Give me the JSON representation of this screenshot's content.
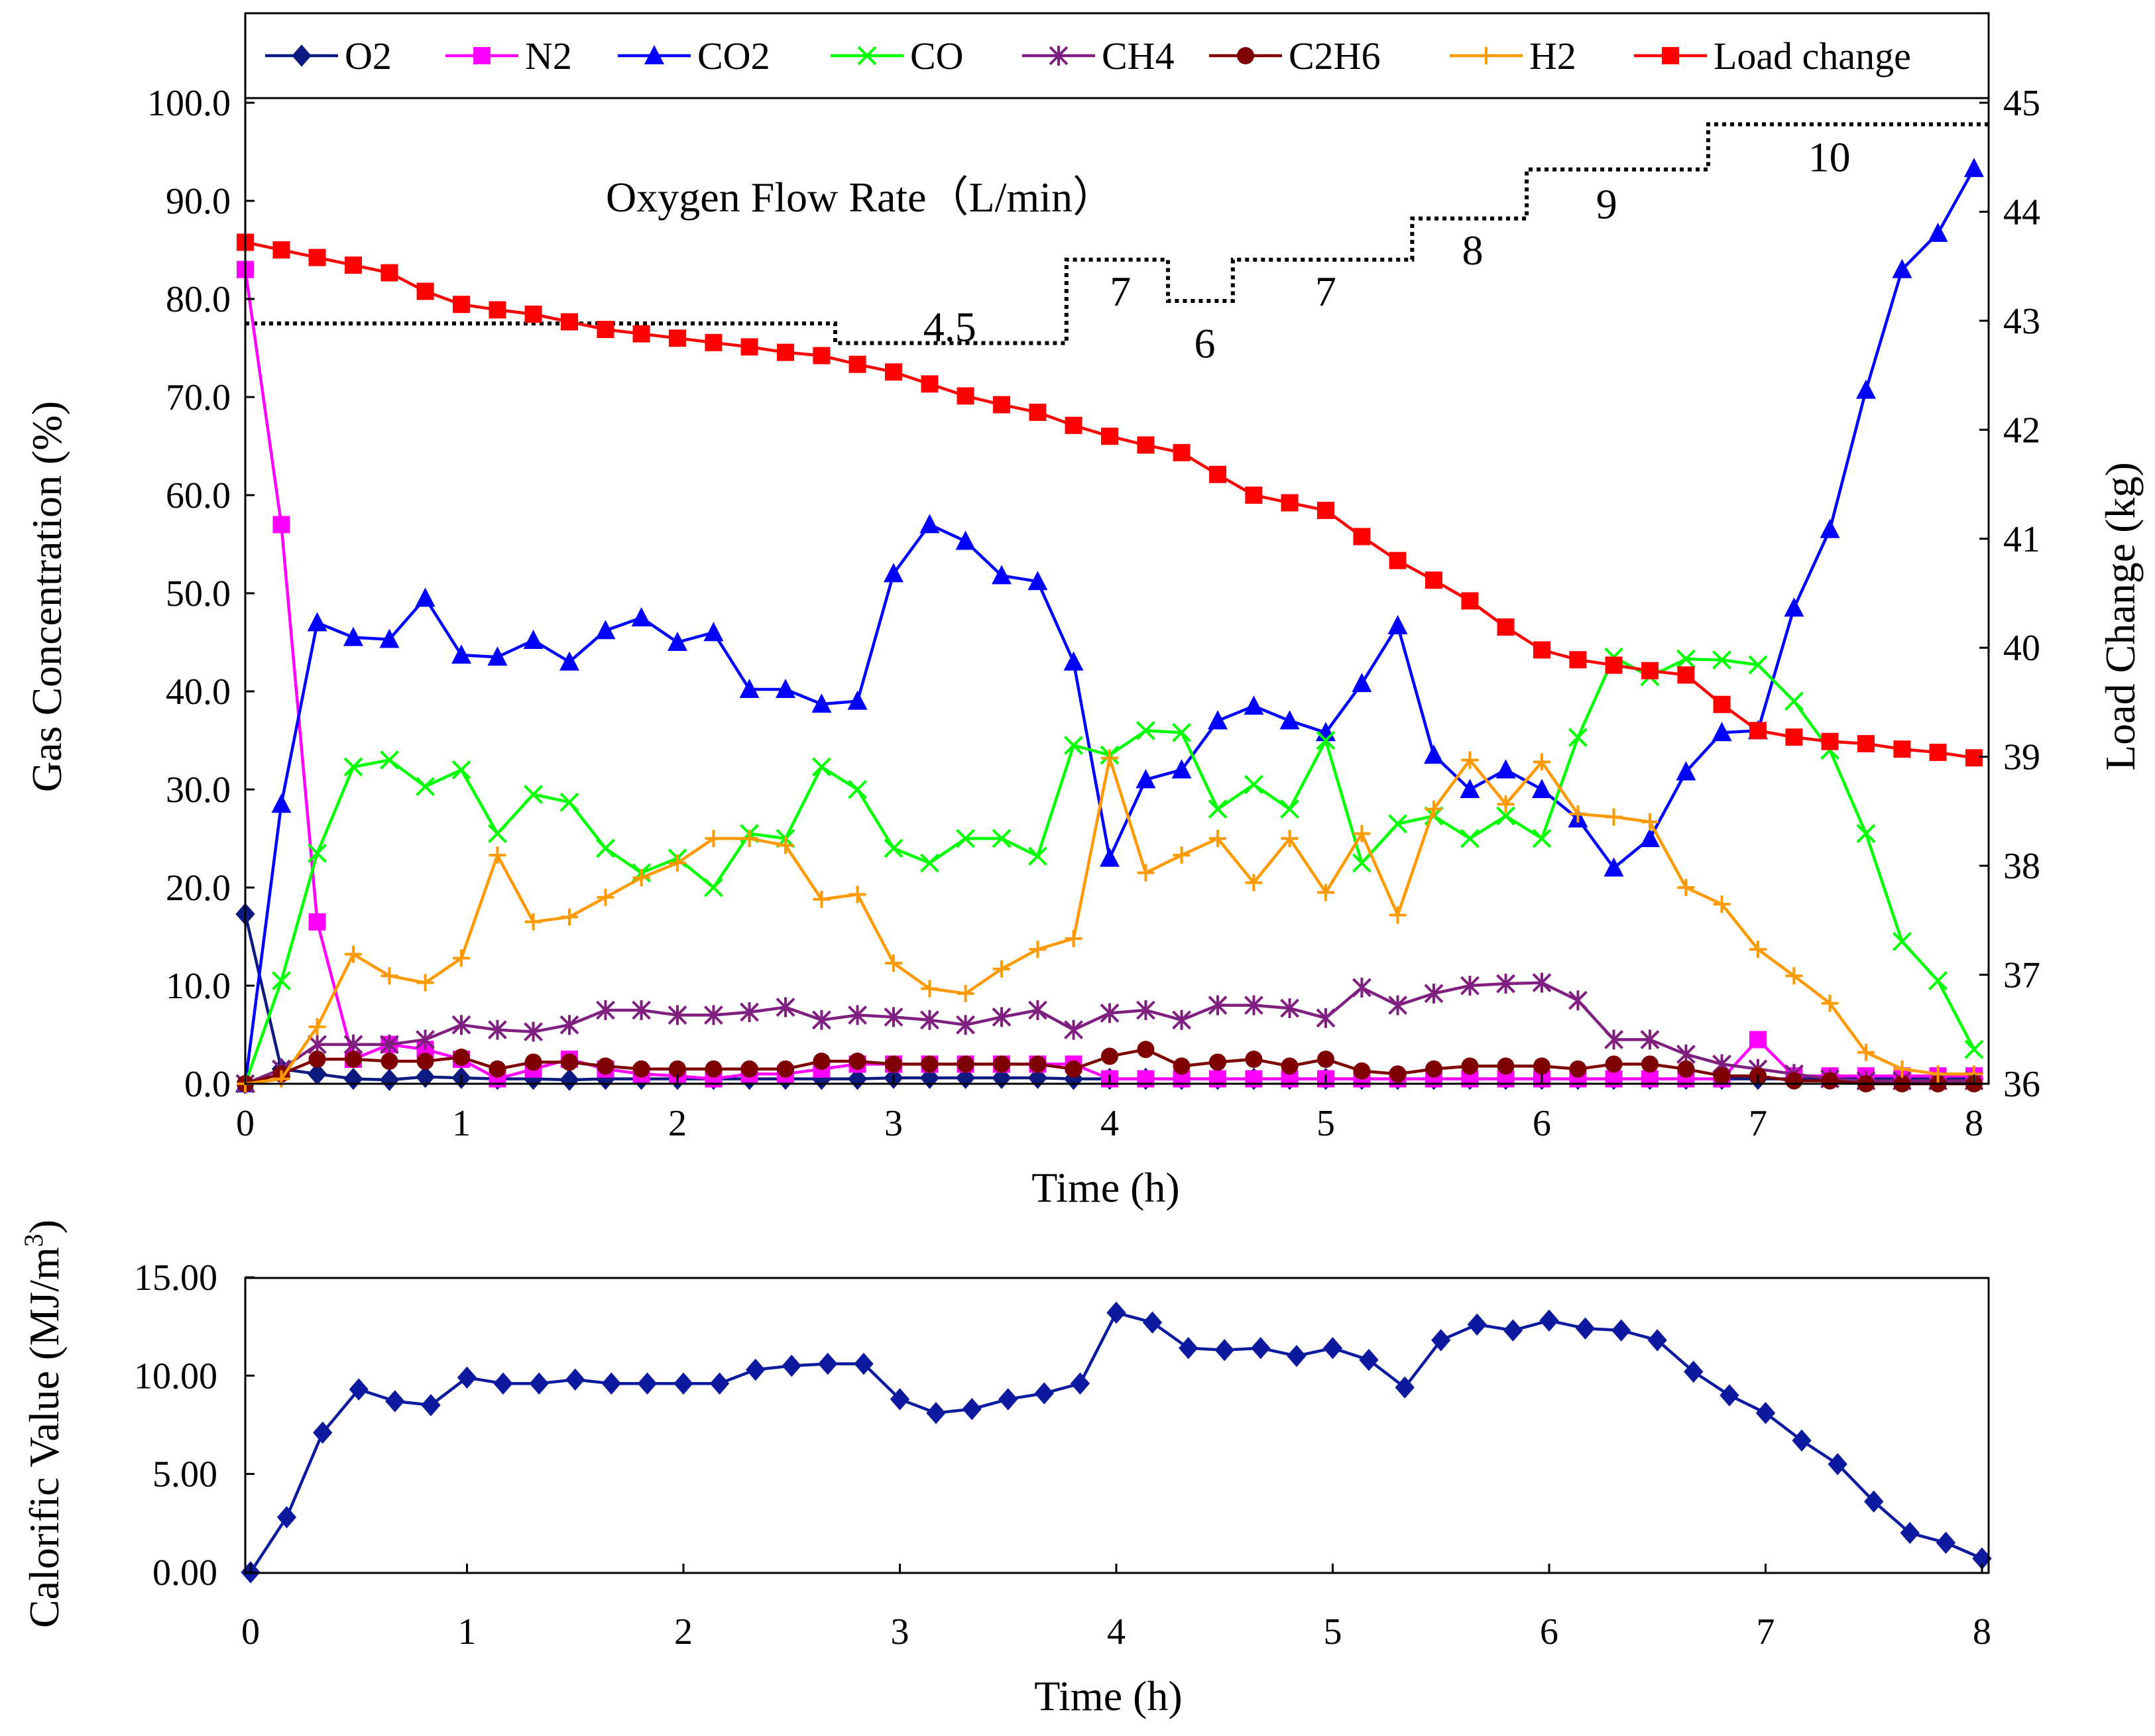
{
  "chart_data": [
    {
      "type": "line",
      "title": "",
      "xlabel": "Time (h)",
      "ylabel": "Gas Concentration (%)",
      "y2label": "Load Change (kg)",
      "xlim": [
        0,
        8
      ],
      "ylim": [
        0,
        100
      ],
      "y2lim": [
        36,
        45
      ],
      "xticks": [
        "0",
        "1",
        "2",
        "3",
        "4",
        "5",
        "6",
        "7",
        "8"
      ],
      "yticks": [
        "0.0",
        "10.0",
        "20.0",
        "30.0",
        "40.0",
        "50.0",
        "60.0",
        "70.0",
        "80.0",
        "90.0",
        "100.0"
      ],
      "y2ticks": [
        "36",
        "37",
        "38",
        "39",
        "40",
        "41",
        "42",
        "43",
        "44",
        "45"
      ],
      "legend_position": "top",
      "grid": false,
      "x": [
        0,
        0.167,
        0.333,
        0.5,
        0.667,
        0.833,
        1,
        1.167,
        1.333,
        1.5,
        1.667,
        1.833,
        2,
        2.167,
        2.333,
        2.5,
        2.667,
        2.833,
        3,
        3.167,
        3.333,
        3.5,
        3.667,
        3.833,
        4,
        4.167,
        4.333,
        4.5,
        4.667,
        4.833,
        5,
        5.167,
        5.333,
        5.5,
        5.667,
        5.833,
        6,
        6.167,
        6.333,
        6.5,
        6.667,
        6.833,
        7,
        7.167,
        7.333,
        7.5,
        7.667,
        7.833,
        8
      ],
      "series": [
        {
          "name": "O2",
          "color": "#0d1a80",
          "marker": "diamond",
          "axis": "left",
          "values": [
            17.3,
            1.5,
            1.0,
            0.5,
            0.4,
            0.7,
            0.6,
            0.5,
            0.5,
            0.4,
            0.5,
            0.5,
            0.5,
            0.5,
            0.5,
            0.5,
            0.5,
            0.5,
            0.6,
            0.6,
            0.6,
            0.6,
            0.6,
            0.5,
            0.5,
            0.5,
            0.5,
            0.5,
            0.5,
            0.5,
            0.5,
            0.5,
            0.5,
            0.5,
            0.5,
            0.5,
            0.5,
            0.5,
            0.5,
            0.5,
            0.5,
            0.5,
            0.5,
            0.5,
            0.5,
            0.5,
            0.5,
            0.5,
            0.5
          ]
        },
        {
          "name": "N2",
          "color": "#ff00ff",
          "marker": "square",
          "axis": "left",
          "values": [
            83.0,
            57.0,
            16.5,
            2.5,
            4.0,
            3.5,
            2.5,
            0.5,
            1.5,
            2.5,
            1.5,
            1.0,
            0.8,
            0.5,
            1.0,
            1.0,
            1.5,
            2.0,
            2.0,
            2.0,
            2.0,
            2.0,
            2.0,
            2.0,
            0.5,
            0.5,
            0.5,
            0.5,
            0.5,
            0.5,
            0.5,
            0.5,
            0.5,
            0.5,
            0.5,
            0.5,
            0.5,
            0.5,
            0.5,
            0.5,
            0.5,
            0.5,
            4.5,
            0.8,
            0.8,
            0.8,
            0.8,
            0.8,
            0.8
          ]
        },
        {
          "name": "CO2",
          "color": "#0000ff",
          "marker": "triangle",
          "axis": "left",
          "values": [
            0.0,
            28.5,
            47.0,
            45.5,
            45.3,
            49.5,
            43.7,
            43.5,
            45.2,
            43.0,
            46.2,
            47.5,
            45.0,
            46.0,
            40.2,
            40.2,
            38.7,
            39.0,
            52.0,
            57.0,
            55.3,
            51.8,
            51.2,
            43.0,
            23.0,
            31.0,
            32.0,
            37.0,
            38.5,
            37.0,
            35.8,
            40.8,
            46.7,
            33.5,
            30.0,
            32.0,
            30.0,
            27.0,
            22.0,
            25.0,
            31.8,
            35.8,
            36.0,
            48.5,
            56.5,
            70.7,
            83.0,
            86.7,
            93.3
          ]
        },
        {
          "name": "CO",
          "color": "#00ff00",
          "marker": "x",
          "axis": "left",
          "values": [
            0.0,
            10.5,
            23.5,
            32.3,
            33.0,
            30.3,
            32.0,
            25.5,
            29.5,
            28.7,
            24.0,
            21.5,
            23.0,
            20.0,
            25.5,
            25.0,
            32.3,
            30.0,
            24.0,
            22.5,
            25.0,
            25.0,
            23.2,
            34.5,
            33.5,
            36.0,
            35.8,
            28.0,
            30.5,
            28.0,
            35.0,
            22.5,
            26.5,
            27.3,
            25.0,
            27.3,
            25.0,
            35.3,
            43.5,
            41.5,
            43.3,
            43.2,
            42.7,
            39.0,
            34.0,
            25.5,
            14.5,
            10.5,
            3.5
          ]
        },
        {
          "name": "CH4",
          "color": "#7f1f7f",
          "marker": "asterisk",
          "axis": "left",
          "values": [
            0.0,
            1.5,
            4.0,
            4.0,
            4.0,
            4.5,
            6.0,
            5.5,
            5.3,
            6.0,
            7.5,
            7.5,
            7.0,
            7.0,
            7.3,
            7.8,
            6.5,
            7.0,
            6.8,
            6.5,
            6.0,
            6.8,
            7.5,
            5.5,
            7.2,
            7.5,
            6.5,
            8.0,
            8.0,
            7.7,
            6.7,
            9.8,
            8.0,
            9.2,
            10.0,
            10.2,
            10.3,
            8.5,
            4.5,
            4.5,
            3.0,
            2.0,
            1.5,
            1.0,
            0.5,
            0.3,
            0.3,
            0.3,
            0.3
          ]
        },
        {
          "name": "C2H6",
          "color": "#7f0000",
          "marker": "circle",
          "axis": "left",
          "values": [
            0.0,
            1.0,
            2.5,
            2.5,
            2.3,
            2.3,
            2.7,
            1.5,
            2.2,
            2.2,
            1.8,
            1.5,
            1.5,
            1.5,
            1.5,
            1.5,
            2.3,
            2.3,
            2.0,
            2.0,
            2.0,
            2.0,
            2.0,
            1.5,
            2.8,
            3.5,
            1.8,
            2.2,
            2.5,
            1.8,
            2.5,
            1.3,
            1.0,
            1.5,
            1.8,
            1.8,
            1.8,
            1.5,
            2.0,
            2.0,
            1.5,
            0.8,
            0.8,
            0.3,
            0.3,
            0.0,
            0.0,
            0.0,
            0.0
          ]
        },
        {
          "name": "H2",
          "color": "#ff9900",
          "marker": "plus",
          "axis": "left",
          "values": [
            0.0,
            0.5,
            5.8,
            13.2,
            11.0,
            10.3,
            12.8,
            23.3,
            16.5,
            17.0,
            19.0,
            21.0,
            22.5,
            25.0,
            25.0,
            24.3,
            18.8,
            19.3,
            12.3,
            9.7,
            9.2,
            11.7,
            13.7,
            14.8,
            33.2,
            21.5,
            23.3,
            25.0,
            20.5,
            25.0,
            19.5,
            25.5,
            17.2,
            28.0,
            33.0,
            28.5,
            32.8,
            27.5,
            27.2,
            26.7,
            20.0,
            18.3,
            13.7,
            11.0,
            8.2,
            3.2,
            1.5,
            1.0,
            1.0
          ]
        },
        {
          "name": "Load change",
          "color": "#ff0000",
          "marker": "square",
          "axis": "right",
          "values": [
            43.72,
            43.65,
            43.58,
            43.51,
            43.44,
            43.27,
            43.15,
            43.1,
            43.06,
            42.99,
            42.92,
            42.88,
            42.84,
            42.8,
            42.76,
            42.71,
            42.68,
            42.6,
            42.53,
            42.42,
            42.31,
            42.23,
            42.16,
            42.04,
            41.94,
            41.86,
            41.79,
            41.59,
            41.4,
            41.33,
            41.26,
            41.02,
            40.8,
            40.62,
            40.43,
            40.19,
            39.98,
            39.89,
            39.84,
            39.79,
            39.75,
            39.48,
            39.24,
            39.18,
            39.14,
            39.12,
            39.07,
            39.04,
            38.99
          ]
        }
      ],
      "oxygen_flow": {
        "label": "Oxygen  Flow Rate（L/min）",
        "steps": [
          {
            "x0": 0,
            "x1": 2.73,
            "y": 77.5
          },
          {
            "x0": 2.73,
            "x1": 3.8,
            "y": 75.5
          },
          {
            "x0": 3.8,
            "x1": 4.27,
            "y": 84.0
          },
          {
            "x0": 4.27,
            "x1": 4.57,
            "y": 79.8
          },
          {
            "x0": 4.57,
            "x1": 5.4,
            "y": 84.0
          },
          {
            "x0": 5.4,
            "x1": 5.93,
            "y": 88.2
          },
          {
            "x0": 5.93,
            "x1": 6.77,
            "y": 93.2
          },
          {
            "x0": 6.77,
            "x1": 8.1,
            "y": 97.8
          }
        ],
        "labels": [
          {
            "text": "4.5",
            "x": 3.26,
            "y": 77.2
          },
          {
            "text": "7",
            "x": 4.05,
            "y": 80.8
          },
          {
            "text": "6",
            "x": 4.44,
            "y": 75.5
          },
          {
            "text": "7",
            "x": 5.0,
            "y": 80.8
          },
          {
            "text": "8",
            "x": 5.68,
            "y": 85.0
          },
          {
            "text": "9",
            "x": 6.3,
            "y": 89.7
          },
          {
            "text": "10",
            "x": 7.33,
            "y": 94.5
          }
        ]
      }
    },
    {
      "type": "line",
      "title": "",
      "xlabel": "Time (h)",
      "ylabel": "Calorific  Value (MJ/m",
      "ylabel_sup": "3",
      "ylabel_end": ")",
      "xlim": [
        0,
        8.1
      ],
      "ylim": [
        0,
        15
      ],
      "xticks": [
        "0",
        "1",
        "2",
        "3",
        "4",
        "5",
        "6",
        "7",
        "8"
      ],
      "yticks": [
        "0.00",
        "5.00",
        "10.00",
        "15.00"
      ],
      "grid": false,
      "series": [
        {
          "name": "Calorific value",
          "color": "#0d1aa0",
          "marker": "diamond",
          "x": [
            0,
            0.167,
            0.333,
            0.5,
            0.667,
            0.833,
            1,
            1.167,
            1.333,
            1.5,
            1.667,
            1.833,
            2,
            2.167,
            2.333,
            2.5,
            2.667,
            2.833,
            3,
            3.167,
            3.333,
            3.5,
            3.667,
            3.833,
            4,
            4.167,
            4.333,
            4.5,
            4.667,
            4.833,
            5,
            5.167,
            5.333,
            5.5,
            5.667,
            5.833,
            6,
            6.167,
            6.333,
            6.5,
            6.667,
            6.833,
            7,
            7.167,
            7.333,
            7.5,
            7.667,
            7.833,
            8
          ],
          "values": [
            0.0,
            2.8,
            7.1,
            9.3,
            8.7,
            8.5,
            9.9,
            9.6,
            9.6,
            9.8,
            9.6,
            9.6,
            9.6,
            9.6,
            10.3,
            10.5,
            10.6,
            10.6,
            8.8,
            8.1,
            8.3,
            8.8,
            9.1,
            9.6,
            13.2,
            12.7,
            11.4,
            11.3,
            11.4,
            11.0,
            11.4,
            10.8,
            9.4,
            11.8,
            12.6,
            12.3,
            12.8,
            12.4,
            12.3,
            11.8,
            10.2,
            9.0,
            8.1,
            6.7,
            5.5,
            3.6,
            2.0,
            1.5,
            0.7
          ]
        }
      ]
    }
  ]
}
